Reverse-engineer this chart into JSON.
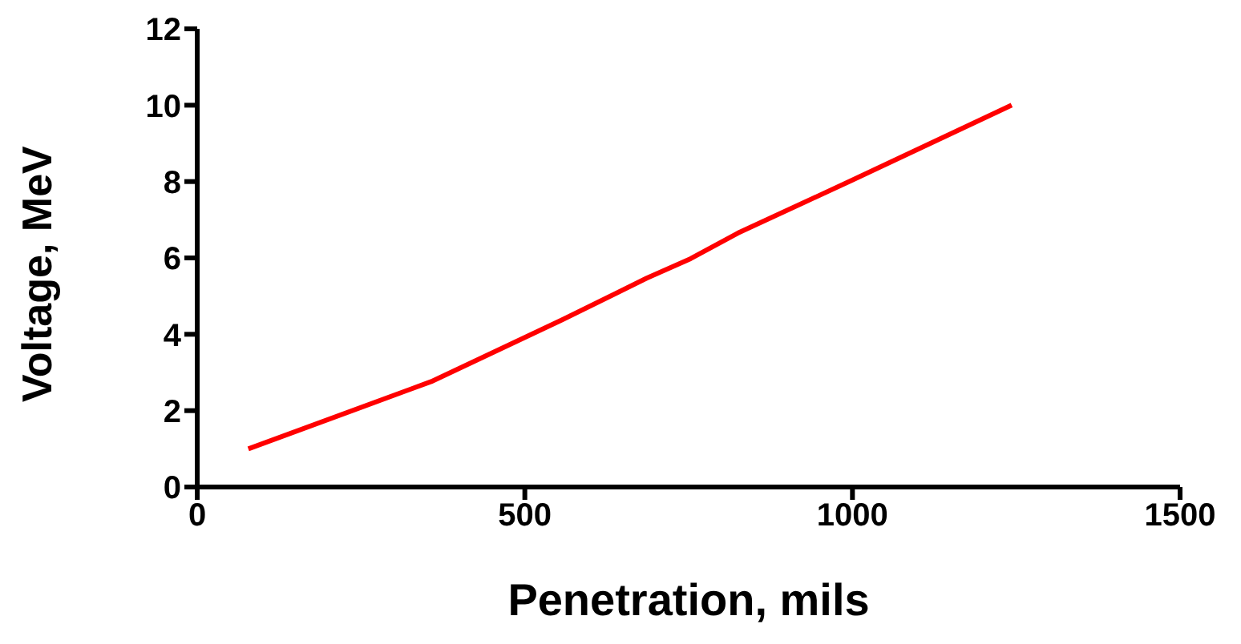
{
  "chart_data": {
    "type": "line",
    "xlabel": "Penetration, mils",
    "ylabel": "Voltage, MeV",
    "x": [
      78,
      357,
      557,
      686,
      753,
      825,
      1000,
      1243
    ],
    "series": [
      {
        "color": "#ff0000",
        "values": [
          1,
          2.76,
          4.38,
          5.47,
          5.98,
          6.65,
          8.04,
          10
        ]
      }
    ],
    "xlim": [
      0,
      1500
    ],
    "xticks": [
      0,
      500,
      1000,
      1500
    ],
    "ylim": [
      0,
      12
    ],
    "yticks": [
      0,
      2,
      4,
      6,
      8,
      10,
      12
    ],
    "grid": false,
    "legend": false,
    "marker": "none",
    "line_style": "solid"
  }
}
